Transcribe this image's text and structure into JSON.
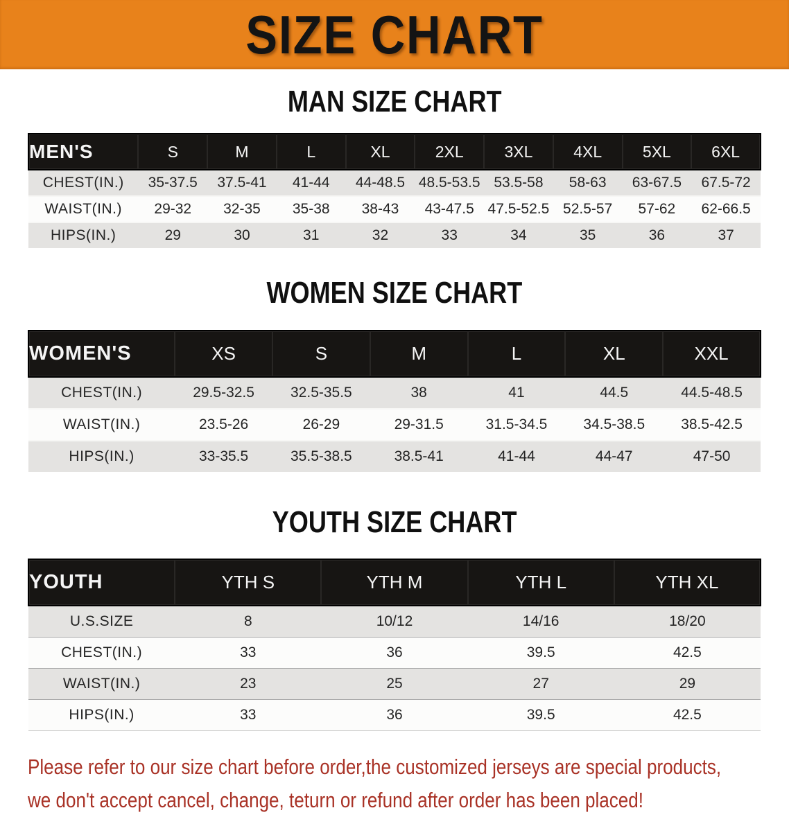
{
  "banner": {
    "title": "SIZE CHART",
    "bg_color": "#E8821B"
  },
  "sections": [
    {
      "title": "MAN SIZE CHART",
      "header_label": "MEN'S",
      "columns": [
        "S",
        "M",
        "L",
        "XL",
        "2XL",
        "3XL",
        "4XL",
        "5XL",
        "6XL"
      ],
      "rows": [
        {
          "label": "CHEST(IN.)",
          "values": [
            "35-37.5",
            "37.5-41",
            "41-44",
            "44-48.5",
            "48.5-53.5",
            "53.5-58",
            "58-63",
            "63-67.5",
            "67.5-72"
          ]
        },
        {
          "label": "WAIST(IN.)",
          "values": [
            "29-32",
            "32-35",
            "35-38",
            "38-43",
            "43-47.5",
            "47.5-52.5",
            "52.5-57",
            "57-62",
            "62-66.5"
          ]
        },
        {
          "label": "HIPS(IN.)",
          "values": [
            "29",
            "30",
            "31",
            "32",
            "33",
            "34",
            "35",
            "36",
            "37"
          ]
        }
      ]
    },
    {
      "title": "WOMEN SIZE CHART",
      "header_label": "WOMEN'S",
      "columns": [
        "XS",
        "S",
        "M",
        "L",
        "XL",
        "XXL"
      ],
      "rows": [
        {
          "label": "CHEST(IN.)",
          "values": [
            "29.5-32.5",
            "32.5-35.5",
            "38",
            "41",
            "44.5",
            "44.5-48.5"
          ]
        },
        {
          "label": "WAIST(IN.)",
          "values": [
            "23.5-26",
            "26-29",
            "29-31.5",
            "31.5-34.5",
            "34.5-38.5",
            "38.5-42.5"
          ]
        },
        {
          "label": "HIPS(IN.)",
          "values": [
            "33-35.5",
            "35.5-38.5",
            "38.5-41",
            "41-44",
            "44-47",
            "47-50"
          ]
        }
      ]
    },
    {
      "title": "YOUTH SIZE CHART",
      "header_label": "YOUTH",
      "columns": [
        "YTH S",
        "YTH M",
        "YTH L",
        "YTH XL"
      ],
      "rows": [
        {
          "label": "U.S.SIZE",
          "values": [
            "8",
            "10/12",
            "14/16",
            "18/20"
          ]
        },
        {
          "label": "CHEST(IN.)",
          "values": [
            "33",
            "36",
            "39.5",
            "42.5"
          ]
        },
        {
          "label": "WAIST(IN.)",
          "values": [
            "23",
            "25",
            "27",
            "29"
          ]
        },
        {
          "label": "HIPS(IN.)",
          "values": [
            "33",
            "36",
            "39.5",
            "42.5"
          ]
        }
      ]
    }
  ],
  "disclaimer": {
    "line1": "Please refer to our size chart before order,the customized jerseys are special products,",
    "line2": "we don't accept cancel, change, teturn or refund after order has been placed!",
    "color": "#A93226"
  },
  "colors": {
    "banner_bg": "#E8821B",
    "table_header_bg": "#171513",
    "row_alt_bg": "#E4E3E1",
    "row_bg": "#FCFCFB",
    "disclaimer_text": "#A93226"
  }
}
